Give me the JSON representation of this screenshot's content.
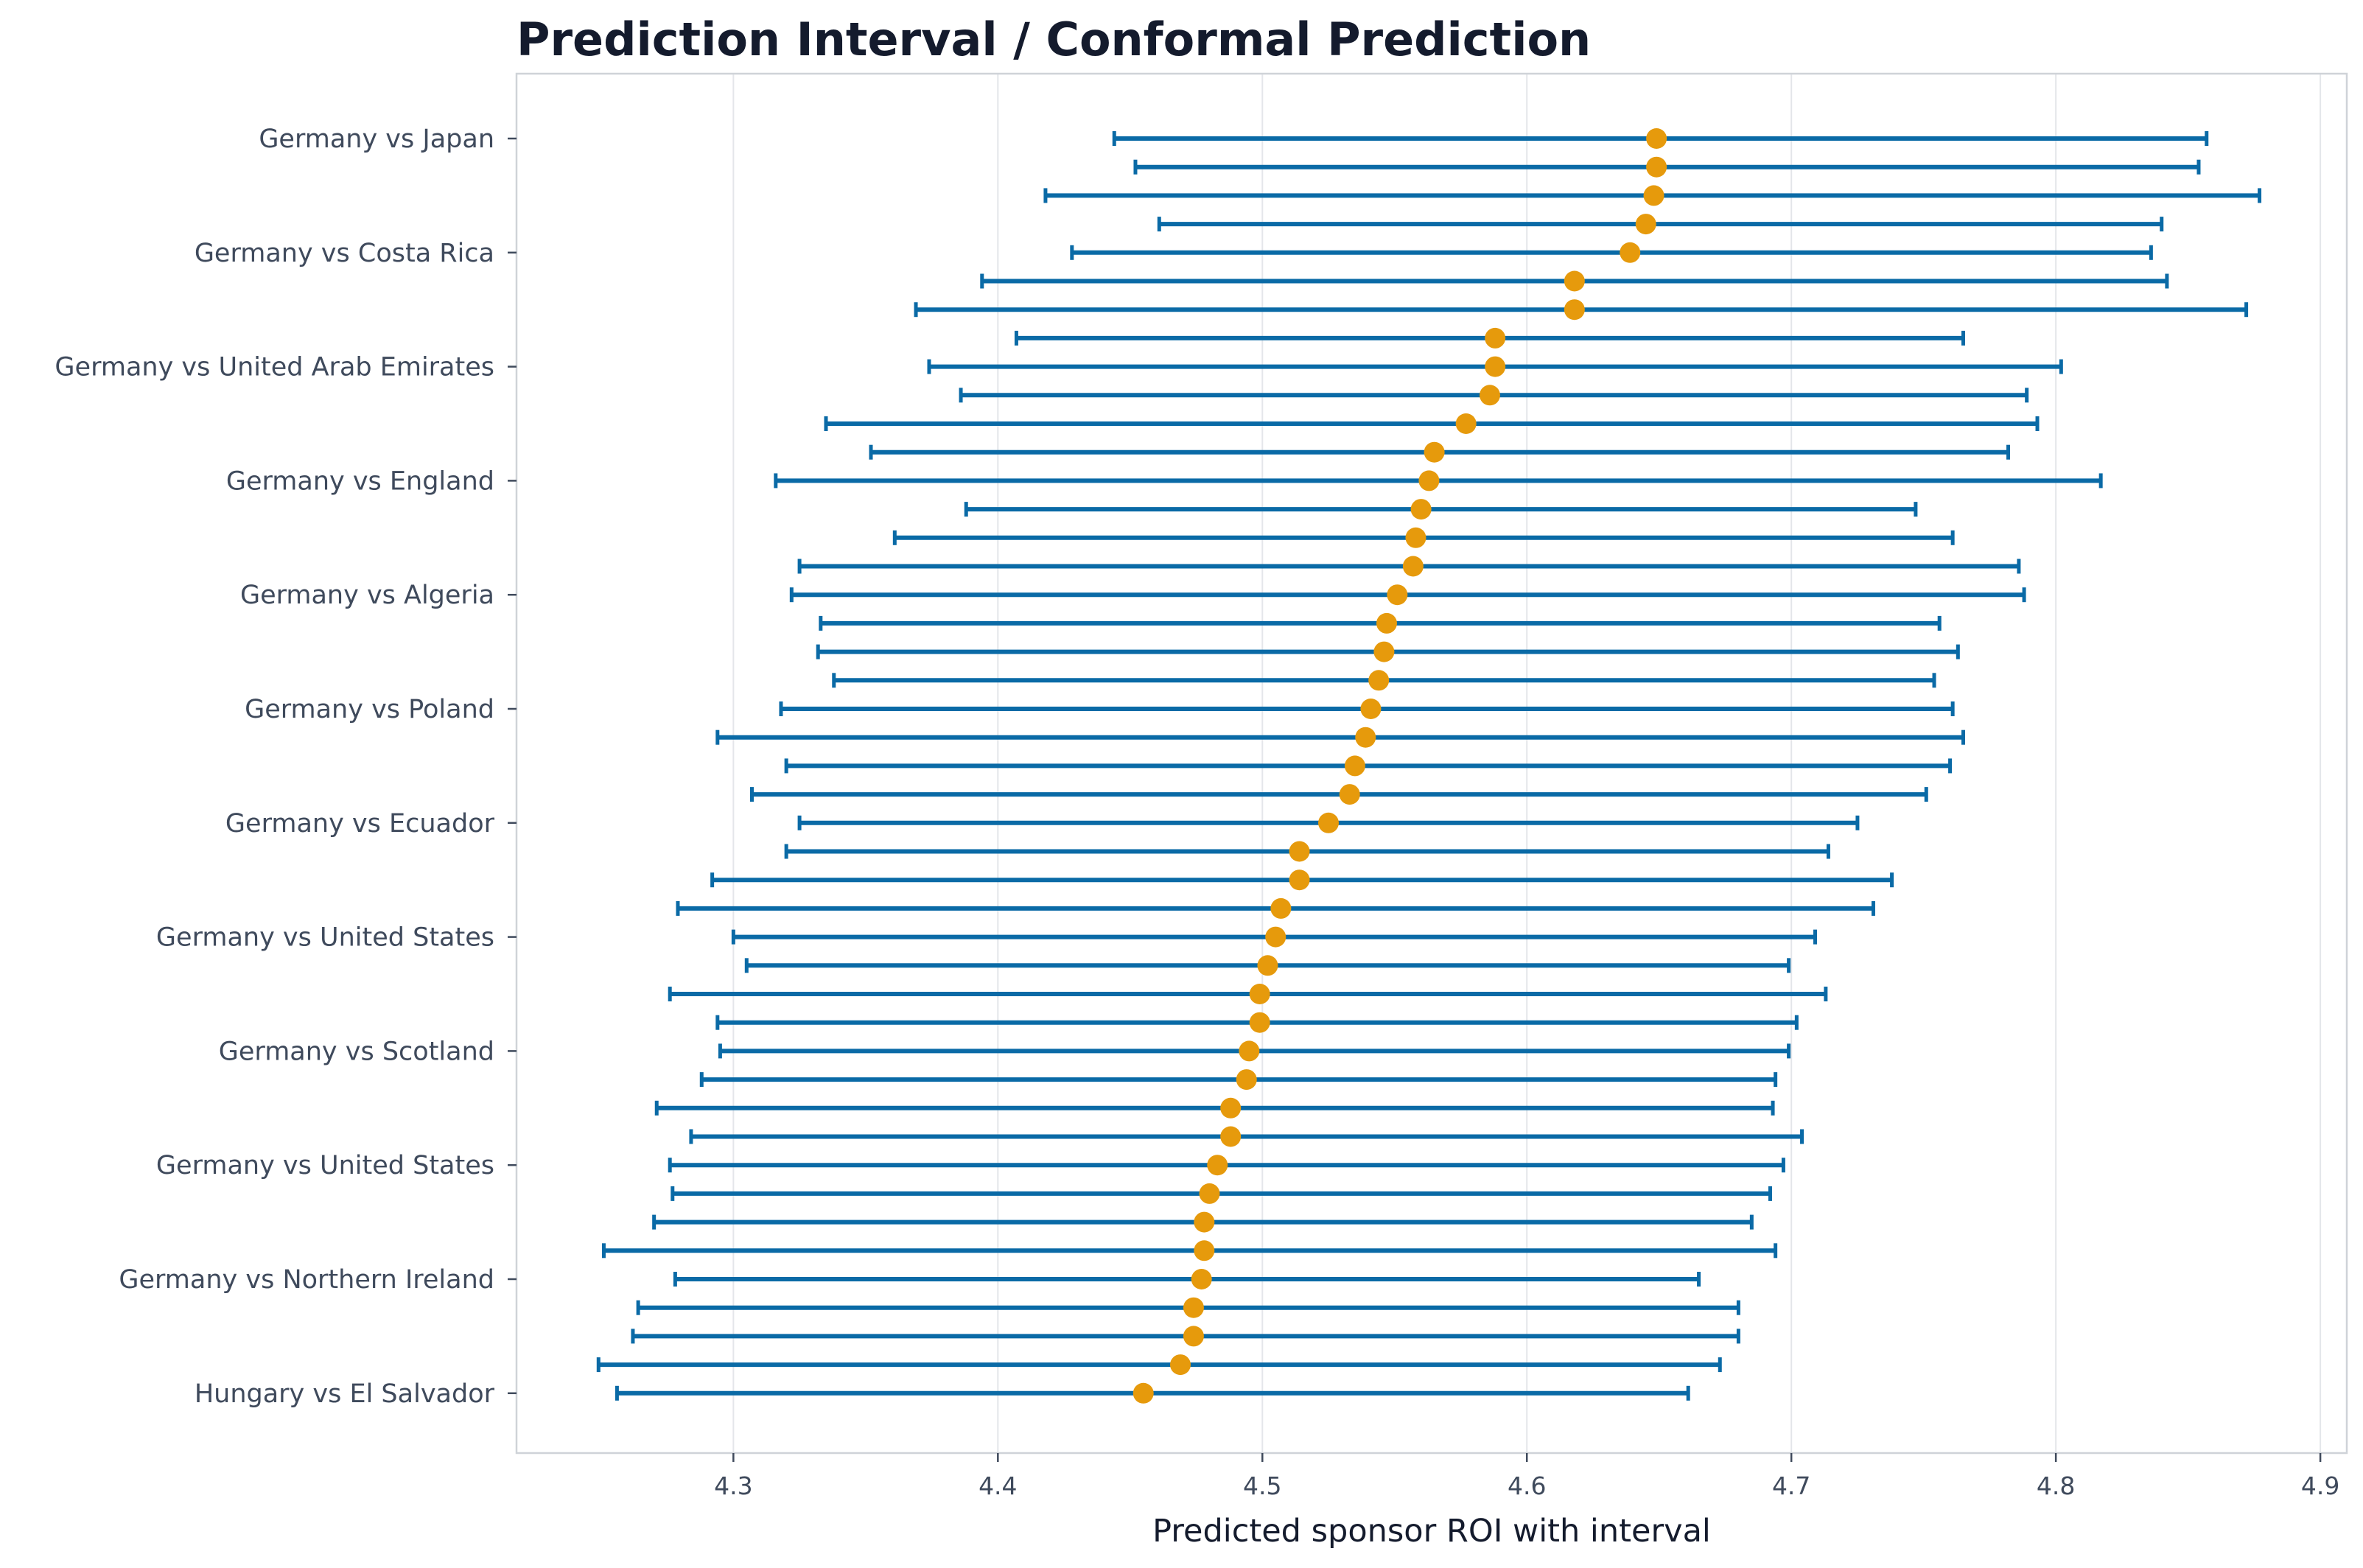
{
  "chart_data": {
    "type": "errorbar",
    "title": "Prediction Interval / Conformal Prediction",
    "xlabel": "Predicted sponsor ROI with interval",
    "ylabel": "",
    "xlim": [
      4.218,
      4.91
    ],
    "xticks": [
      4.3,
      4.4,
      4.5,
      4.6,
      4.7,
      4.8,
      4.9
    ],
    "grid": "x",
    "colors": {
      "interval": "#0a6aa6",
      "point": "#e69a0c"
    },
    "ytick_labels": [
      "Germany vs Japan",
      "Germany vs Costa Rica",
      "Germany vs United Arab Emirates",
      "Germany vs England",
      "Germany vs Algeria",
      "Germany vs Poland",
      "Germany vs Ecuador",
      "Germany vs United States",
      "Germany vs Scotland",
      "Germany vs United States",
      "Germany vs Northern Ireland",
      "Hungary vs El Salvador"
    ],
    "rows": [
      {
        "pred": 4.649,
        "lower": 4.444,
        "upper": 4.857
      },
      {
        "pred": 4.649,
        "lower": 4.452,
        "upper": 4.854
      },
      {
        "pred": 4.648,
        "lower": 4.418,
        "upper": 4.877
      },
      {
        "pred": 4.645,
        "lower": 4.461,
        "upper": 4.84
      },
      {
        "pred": 4.639,
        "lower": 4.428,
        "upper": 4.836
      },
      {
        "pred": 4.618,
        "lower": 4.394,
        "upper": 4.842
      },
      {
        "pred": 4.618,
        "lower": 4.369,
        "upper": 4.872
      },
      {
        "pred": 4.588,
        "lower": 4.407,
        "upper": 4.765
      },
      {
        "pred": 4.588,
        "lower": 4.374,
        "upper": 4.802
      },
      {
        "pred": 4.586,
        "lower": 4.386,
        "upper": 4.789
      },
      {
        "pred": 4.577,
        "lower": 4.335,
        "upper": 4.793
      },
      {
        "pred": 4.565,
        "lower": 4.352,
        "upper": 4.782
      },
      {
        "pred": 4.563,
        "lower": 4.316,
        "upper": 4.817
      },
      {
        "pred": 4.56,
        "lower": 4.388,
        "upper": 4.747
      },
      {
        "pred": 4.558,
        "lower": 4.361,
        "upper": 4.761
      },
      {
        "pred": 4.557,
        "lower": 4.325,
        "upper": 4.786
      },
      {
        "pred": 4.551,
        "lower": 4.322,
        "upper": 4.788
      },
      {
        "pred": 4.547,
        "lower": 4.333,
        "upper": 4.756
      },
      {
        "pred": 4.546,
        "lower": 4.332,
        "upper": 4.763
      },
      {
        "pred": 4.544,
        "lower": 4.338,
        "upper": 4.754
      },
      {
        "pred": 4.541,
        "lower": 4.318,
        "upper": 4.761
      },
      {
        "pred": 4.539,
        "lower": 4.294,
        "upper": 4.765
      },
      {
        "pred": 4.535,
        "lower": 4.32,
        "upper": 4.76
      },
      {
        "pred": 4.533,
        "lower": 4.307,
        "upper": 4.751
      },
      {
        "pred": 4.525,
        "lower": 4.325,
        "upper": 4.725
      },
      {
        "pred": 4.514,
        "lower": 4.32,
        "upper": 4.714
      },
      {
        "pred": 4.514,
        "lower": 4.292,
        "upper": 4.738
      },
      {
        "pred": 4.507,
        "lower": 4.279,
        "upper": 4.731
      },
      {
        "pred": 4.505,
        "lower": 4.3,
        "upper": 4.709
      },
      {
        "pred": 4.502,
        "lower": 4.305,
        "upper": 4.699
      },
      {
        "pred": 4.499,
        "lower": 4.276,
        "upper": 4.713
      },
      {
        "pred": 4.499,
        "lower": 4.294,
        "upper": 4.702
      },
      {
        "pred": 4.495,
        "lower": 4.295,
        "upper": 4.699
      },
      {
        "pred": 4.494,
        "lower": 4.288,
        "upper": 4.694
      },
      {
        "pred": 4.488,
        "lower": 4.271,
        "upper": 4.693
      },
      {
        "pred": 4.488,
        "lower": 4.284,
        "upper": 4.704
      },
      {
        "pred": 4.483,
        "lower": 4.276,
        "upper": 4.697
      },
      {
        "pred": 4.48,
        "lower": 4.277,
        "upper": 4.692
      },
      {
        "pred": 4.478,
        "lower": 4.27,
        "upper": 4.685
      },
      {
        "pred": 4.478,
        "lower": 4.251,
        "upper": 4.694
      },
      {
        "pred": 4.477,
        "lower": 4.278,
        "upper": 4.665
      },
      {
        "pred": 4.474,
        "lower": 4.264,
        "upper": 4.68
      },
      {
        "pred": 4.474,
        "lower": 4.262,
        "upper": 4.68
      },
      {
        "pred": 4.469,
        "lower": 4.249,
        "upper": 4.673
      },
      {
        "pred": 4.455,
        "lower": 4.256,
        "upper": 4.661
      }
    ]
  }
}
